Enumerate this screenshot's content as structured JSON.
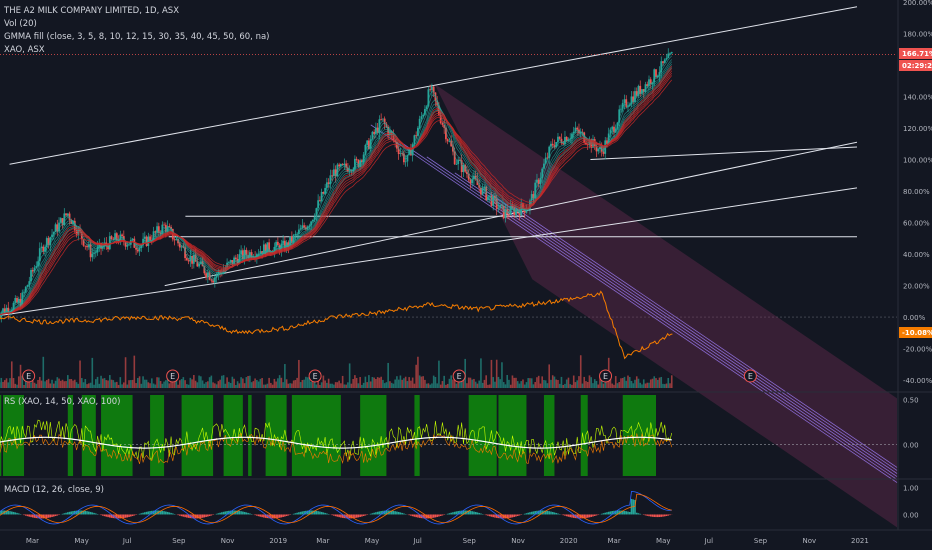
{
  "header": {
    "symbol": "THE A2 MILK COMPANY LIMITED, 1D, ASX",
    "vol": "Vol (20)",
    "gmma": "GMMA fill (close, 3, 5, 8, 10, 12, 15, 30, 35, 40, 45, 50, 60, na)",
    "compare": "XAO, ASX",
    "rs": "RS (XAO, 14, 50, XAO, 100)",
    "macd": "MACD (12, 26, close, 9)"
  },
  "colors": {
    "background": "#131722",
    "up": "#26a69a",
    "down": "#ef5350",
    "xao": "#f57c00",
    "trend": "#e0e3eb",
    "pitchfork": "#9c7bf5",
    "rs_fill": "#0f7a0f",
    "price_tag": "#ef5350",
    "xao_tag": "#f57c00"
  },
  "price_tags": {
    "last": "166.71%",
    "time": "02:29:25",
    "xao": "-10.08%"
  },
  "chart_data": [
    {
      "type": "line",
      "title": "THE A2 MILK COMPANY LIMITED, 1D, ASX",
      "xlabel": "",
      "ylabel": "",
      "scale": "percent change",
      "ylim": [
        -45,
        200
      ],
      "x_ticks": [
        "Mar",
        "May",
        "Jul",
        "Sep",
        "Nov",
        "2019",
        "Mar",
        "May",
        "Jul",
        "Sep",
        "Nov",
        "2020",
        "Mar",
        "May",
        "Jul",
        "Sep",
        "Nov",
        "2021"
      ],
      "y_ticks": [
        "200.00%",
        "180.00%",
        "160.00%",
        "140.00%",
        "120.00%",
        "100.00%",
        "80.00%",
        "60.00%",
        "40.00%",
        "20.00%",
        "0.00%",
        "-20.00%",
        "-40.00%"
      ],
      "series": [
        {
          "name": "",
          "x": [
            "2018-01",
            "2018-02",
            "2018-03",
            "2018-04",
            "2018-05",
            "2018-06",
            "2018-07",
            "2018-08",
            "2018-09",
            "2018-10",
            "2018-11",
            "2018-12",
            "2019-01",
            "2019-02",
            "2019-03",
            "2019-04",
            "2019-05",
            "2019-06",
            "2019-07",
            "2019-08",
            "2019-09",
            "2019-10",
            "2019-11",
            "2019-12",
            "2020-01",
            "2020-02",
            "2020-03",
            "2020-04",
            "2020-05"
          ],
          "values": [
            2,
            10,
            45,
            66,
            40,
            50,
            45,
            58,
            38,
            25,
            38,
            43,
            45,
            62,
            92,
            98,
            125,
            98,
            145,
            100,
            82,
            66,
            70,
            110,
            118,
            105,
            135,
            150,
            167
          ]
        },
        {
          "name": "XAO, ASX",
          "x": [
            "2018-01",
            "2018-03",
            "2018-05",
            "2018-07",
            "2018-09",
            "2018-11",
            "2019-01",
            "2019-03",
            "2019-05",
            "2019-07",
            "2019-09",
            "2019-11",
            "2020-01",
            "2020-02",
            "2020-03",
            "2020-04",
            "2020-05"
          ],
          "values": [
            0,
            -3,
            -2,
            0,
            -1,
            -10,
            -7,
            0,
            3,
            8,
            5,
            8,
            12,
            15,
            -25,
            -18,
            -10
          ]
        }
      ],
      "earnings_markers": [
        "E",
        "E",
        "E",
        "E",
        "E",
        "E"
      ]
    },
    {
      "type": "line",
      "title": "RS (XAO, 14, 50, XAO, 100)",
      "ylim": [
        -0.35,
        0.55
      ],
      "y_ticks": [
        "0.50",
        "0.00"
      ]
    },
    {
      "type": "line",
      "title": "MACD (12, 26, close, 9)",
      "ylim": [
        -0.5,
        1.2
      ],
      "y_ticks": [
        "1.00",
        "0.00"
      ]
    }
  ]
}
